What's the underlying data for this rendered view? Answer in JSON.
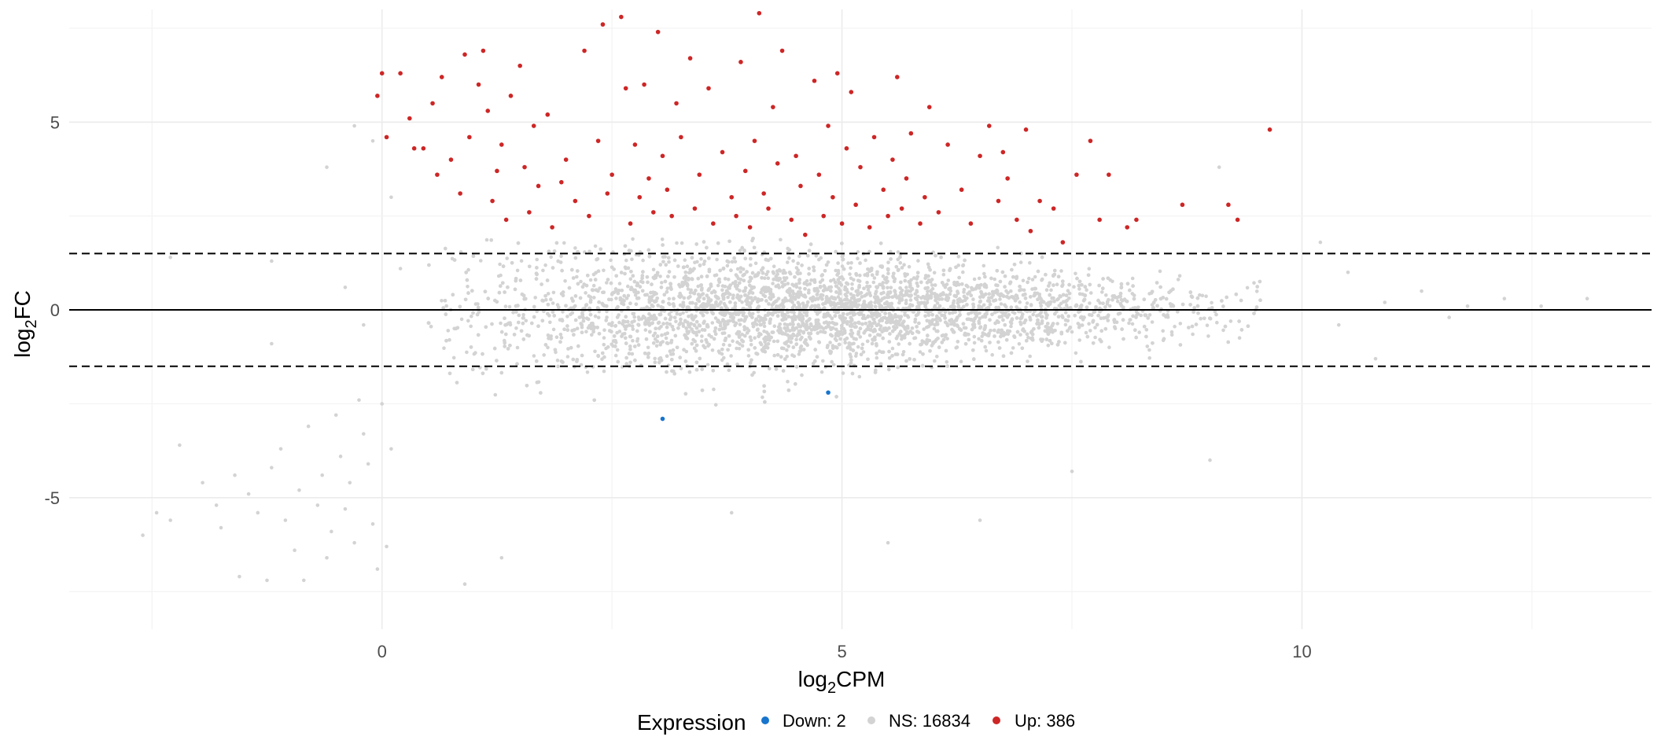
{
  "chart_data": {
    "type": "scatter",
    "title": "",
    "xlabel": "log2CPM",
    "ylabel": "log2FC",
    "xlabel_parts": {
      "base": "log",
      "sub": "2",
      "rest": "CPM"
    },
    "ylabel_parts": {
      "base": "log",
      "sub": "2",
      "rest": "FC"
    },
    "xlim": [
      -3.4,
      13.8
    ],
    "ylim": [
      -8.5,
      8.0
    ],
    "x_ticks": [
      0,
      5,
      10
    ],
    "y_ticks": [
      -5,
      0,
      5
    ],
    "x_tick_labels": [
      "0",
      "5",
      "10"
    ],
    "y_tick_labels": [
      "-5",
      "0",
      "5"
    ],
    "grid": true,
    "reference_lines": [
      {
        "y": 0,
        "style": "solid"
      },
      {
        "y": 1.5,
        "style": "dashed"
      },
      {
        "y": -1.5,
        "style": "dashed"
      }
    ],
    "legend": {
      "title": "Expression",
      "position": "bottom",
      "entries": [
        {
          "key": "Down",
          "label": "Down: 2",
          "color": "#1874CD"
        },
        {
          "key": "NS",
          "label": "NS: 16834",
          "color": "#D3D3D3"
        },
        {
          "key": "Up",
          "label": "Up: 386",
          "color": "#CD2626"
        }
      ]
    },
    "series": [
      {
        "name": "Down",
        "color": "#1874CD",
        "points": [
          [
            3.05,
            -2.9
          ],
          [
            4.85,
            -2.2
          ]
        ]
      },
      {
        "name": "Up",
        "color": "#CD2626",
        "points": [
          [
            -0.05,
            5.7
          ],
          [
            -0.0,
            6.3
          ],
          [
            0.2,
            6.3
          ],
          [
            0.05,
            4.6
          ],
          [
            0.3,
            5.1
          ],
          [
            0.35,
            4.3
          ],
          [
            0.45,
            4.3
          ],
          [
            0.55,
            5.5
          ],
          [
            0.6,
            3.6
          ],
          [
            0.65,
            6.2
          ],
          [
            0.75,
            4.0
          ],
          [
            0.85,
            3.1
          ],
          [
            0.9,
            6.8
          ],
          [
            0.95,
            4.6
          ],
          [
            1.05,
            6.0
          ],
          [
            1.1,
            6.9
          ],
          [
            1.15,
            5.3
          ],
          [
            1.2,
            2.9
          ],
          [
            1.25,
            3.7
          ],
          [
            1.3,
            4.4
          ],
          [
            1.35,
            2.4
          ],
          [
            1.4,
            5.7
          ],
          [
            1.5,
            6.5
          ],
          [
            1.55,
            3.8
          ],
          [
            1.6,
            2.6
          ],
          [
            1.65,
            4.9
          ],
          [
            1.7,
            3.3
          ],
          [
            1.8,
            5.2
          ],
          [
            1.85,
            2.2
          ],
          [
            1.95,
            3.4
          ],
          [
            2.0,
            4.0
          ],
          [
            2.1,
            2.9
          ],
          [
            2.2,
            6.9
          ],
          [
            2.25,
            2.5
          ],
          [
            2.35,
            4.5
          ],
          [
            2.4,
            7.6
          ],
          [
            2.45,
            3.1
          ],
          [
            2.5,
            3.6
          ],
          [
            2.6,
            7.8
          ],
          [
            2.65,
            5.9
          ],
          [
            2.7,
            2.3
          ],
          [
            2.75,
            4.4
          ],
          [
            2.8,
            3.0
          ],
          [
            2.85,
            6.0
          ],
          [
            2.9,
            3.5
          ],
          [
            2.95,
            2.6
          ],
          [
            3.0,
            7.4
          ],
          [
            3.05,
            4.1
          ],
          [
            3.1,
            3.2
          ],
          [
            3.15,
            2.5
          ],
          [
            3.2,
            5.5
          ],
          [
            3.25,
            4.6
          ],
          [
            3.35,
            6.7
          ],
          [
            3.4,
            2.7
          ],
          [
            3.45,
            3.6
          ],
          [
            3.55,
            5.9
          ],
          [
            3.6,
            2.3
          ],
          [
            3.7,
            4.2
          ],
          [
            3.8,
            3.0
          ],
          [
            3.85,
            2.5
          ],
          [
            3.9,
            6.6
          ],
          [
            3.95,
            3.7
          ],
          [
            4.0,
            2.2
          ],
          [
            4.05,
            4.5
          ],
          [
            4.1,
            7.9
          ],
          [
            4.15,
            3.1
          ],
          [
            4.2,
            2.7
          ],
          [
            4.25,
            5.4
          ],
          [
            4.3,
            3.9
          ],
          [
            4.35,
            6.9
          ],
          [
            4.45,
            2.4
          ],
          [
            4.5,
            4.1
          ],
          [
            4.55,
            3.3
          ],
          [
            4.6,
            2.0
          ],
          [
            4.7,
            6.1
          ],
          [
            4.75,
            3.6
          ],
          [
            4.8,
            2.5
          ],
          [
            4.85,
            4.9
          ],
          [
            4.9,
            3.0
          ],
          [
            4.95,
            6.3
          ],
          [
            5.0,
            2.3
          ],
          [
            5.05,
            4.3
          ],
          [
            5.1,
            5.8
          ],
          [
            5.15,
            2.8
          ],
          [
            5.2,
            3.8
          ],
          [
            5.3,
            2.2
          ],
          [
            5.35,
            4.6
          ],
          [
            5.45,
            3.2
          ],
          [
            5.5,
            2.5
          ],
          [
            5.55,
            4.0
          ],
          [
            5.6,
            6.2
          ],
          [
            5.65,
            2.7
          ],
          [
            5.7,
            3.5
          ],
          [
            5.75,
            4.7
          ],
          [
            5.85,
            2.3
          ],
          [
            5.9,
            3.0
          ],
          [
            5.95,
            5.4
          ],
          [
            6.05,
            2.6
          ],
          [
            6.15,
            4.4
          ],
          [
            6.3,
            3.2
          ],
          [
            6.4,
            2.3
          ],
          [
            6.5,
            4.1
          ],
          [
            6.6,
            4.9
          ],
          [
            6.7,
            2.9
          ],
          [
            6.75,
            4.2
          ],
          [
            6.8,
            3.5
          ],
          [
            6.9,
            2.4
          ],
          [
            7.0,
            4.8
          ],
          [
            7.05,
            2.1
          ],
          [
            7.15,
            2.9
          ],
          [
            7.3,
            2.7
          ],
          [
            7.4,
            1.8
          ],
          [
            7.55,
            3.6
          ],
          [
            7.7,
            4.5
          ],
          [
            7.8,
            2.4
          ],
          [
            7.9,
            3.6
          ],
          [
            8.1,
            2.2
          ],
          [
            8.2,
            2.4
          ],
          [
            8.7,
            2.8
          ],
          [
            9.2,
            2.8
          ],
          [
            9.3,
            2.4
          ],
          [
            9.65,
            4.8
          ]
        ]
      },
      {
        "name": "NS",
        "color": "#D3D3D3",
        "summary": "16834 non-significant genes, dense band around log2FC 0 between log2CPM 0.5 and 9.5; sparse low-expression tail extending to log2CPM -2.5 with log2FC down to about -7.3",
        "points": [
          [
            -2.6,
            -6.0
          ],
          [
            -2.45,
            -5.4
          ],
          [
            -2.3,
            -5.6
          ],
          [
            -2.2,
            -3.6
          ],
          [
            -1.95,
            -4.6
          ],
          [
            -1.8,
            -5.2
          ],
          [
            -1.75,
            -5.8
          ],
          [
            -1.6,
            -4.4
          ],
          [
            -1.55,
            -7.1
          ],
          [
            -1.45,
            -4.9
          ],
          [
            -1.35,
            -5.4
          ],
          [
            -1.25,
            -7.2
          ],
          [
            -1.2,
            -4.2
          ],
          [
            -1.1,
            -3.7
          ],
          [
            -1.05,
            -5.6
          ],
          [
            -0.95,
            -6.4
          ],
          [
            -0.9,
            -4.8
          ],
          [
            -0.85,
            -7.2
          ],
          [
            -0.8,
            -3.1
          ],
          [
            -0.7,
            -5.2
          ],
          [
            -0.65,
            -4.4
          ],
          [
            -0.6,
            -6.6
          ],
          [
            -0.55,
            -5.9
          ],
          [
            -0.5,
            -2.8
          ],
          [
            -0.45,
            -3.9
          ],
          [
            -0.4,
            -5.3
          ],
          [
            -0.35,
            -4.6
          ],
          [
            -0.3,
            -6.2
          ],
          [
            -0.25,
            -2.4
          ],
          [
            -0.2,
            -3.3
          ],
          [
            -0.15,
            -4.1
          ],
          [
            -0.1,
            -5.7
          ],
          [
            -0.05,
            -6.9
          ],
          [
            0.0,
            -2.5
          ],
          [
            0.05,
            -6.3
          ],
          [
            0.1,
            -3.7
          ],
          [
            -1.2,
            1.3
          ],
          [
            -0.6,
            3.8
          ],
          [
            -0.3,
            4.9
          ],
          [
            -0.1,
            4.5
          ],
          [
            0.1,
            3.0
          ],
          [
            -2.3,
            1.4
          ],
          [
            -1.2,
            -0.9
          ],
          [
            -0.4,
            0.6
          ],
          [
            -0.2,
            -0.4
          ],
          [
            0.2,
            1.1
          ],
          [
            10.2,
            1.8
          ],
          [
            10.5,
            1.0
          ],
          [
            10.9,
            0.2
          ],
          [
            11.3,
            0.5
          ],
          [
            11.8,
            0.1
          ],
          [
            12.2,
            0.3
          ],
          [
            12.6,
            0.1
          ],
          [
            13.1,
            0.3
          ],
          [
            10.4,
            -0.4
          ],
          [
            10.8,
            -1.3
          ],
          [
            11.6,
            -0.2
          ],
          [
            9.1,
            3.8
          ],
          [
            9.0,
            -4.0
          ],
          [
            6.5,
            -5.6
          ],
          [
            5.5,
            -6.2
          ],
          [
            7.5,
            -4.3
          ],
          [
            3.8,
            -5.4
          ],
          [
            1.3,
            -6.6
          ],
          [
            0.9,
            -7.3
          ]
        ],
        "cloud": {
          "count": 16834,
          "x_range": [
            0.5,
            9.6
          ],
          "x_mean": 4.8,
          "x_sd": 1.9,
          "y_mean": 0.0,
          "y_sd_at_low_x": 1.0,
          "y_sd_at_high_x": 0.35
        }
      }
    ]
  }
}
